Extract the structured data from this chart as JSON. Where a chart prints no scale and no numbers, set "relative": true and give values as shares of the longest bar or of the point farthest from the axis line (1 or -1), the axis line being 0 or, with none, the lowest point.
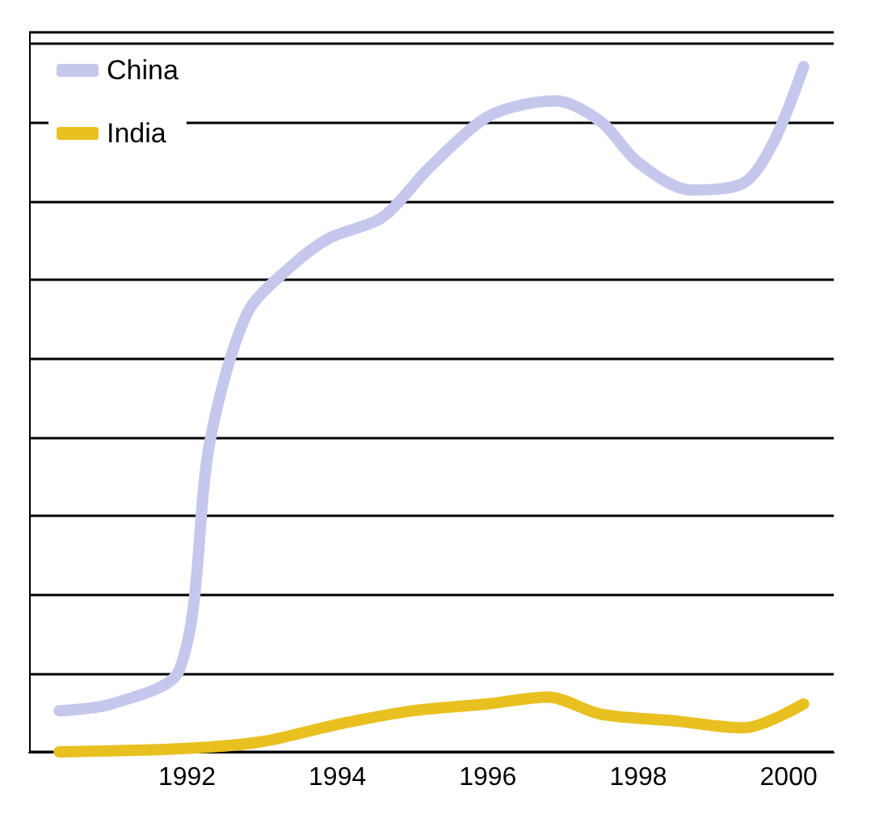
{
  "chart_data": {
    "type": "line",
    "relative": true,
    "grid": "y",
    "legend": "top left",
    "line_style": "solid",
    "xlim": [
      1989.9,
      2000.6
    ],
    "xticks": [
      1992,
      1994,
      1996,
      1998,
      2000
    ],
    "series": [
      {
        "name": "China",
        "color": "#c5c8ec",
        "x": [
          1990.3,
          1991,
          1991.9,
          1992.3,
          1992.8,
          1993.4,
          1993.9,
          1994.6,
          1995.2,
          1995.9,
          1996.3,
          1996.9,
          1997.5,
          1998,
          1998.7,
          1999.4,
          1999.8,
          2000.2
        ],
        "values": [
          0.06,
          0.07,
          0.12,
          0.45,
          0.64,
          0.71,
          0.75,
          0.78,
          0.85,
          0.92,
          0.94,
          0.95,
          0.92,
          0.86,
          0.82,
          0.83,
          0.89,
          1
        ]
      },
      {
        "name": "India",
        "color": "#e8c020",
        "x": [
          1990.3,
          1992,
          1993,
          1994,
          1995,
          1996,
          1996.8,
          1997.5,
          1998.5,
          1999.4,
          2000.2
        ],
        "values": [
          0,
          0.005,
          0.015,
          0.04,
          0.06,
          0.07,
          0.08,
          0.055,
          0.045,
          0.035,
          0.07
        ]
      }
    ]
  }
}
